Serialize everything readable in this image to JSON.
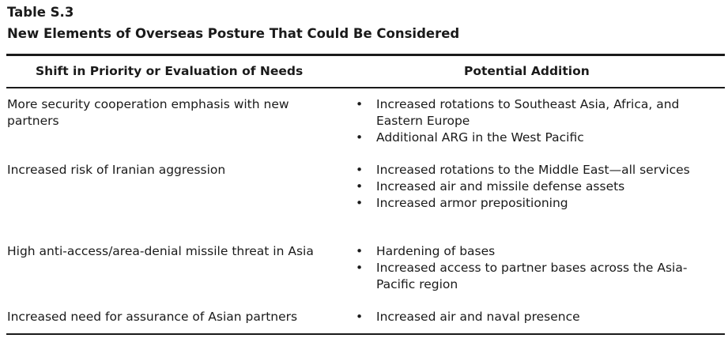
{
  "table": {
    "number": "Table S.3",
    "title": "New Elements of Overseas Posture That Could Be Considered",
    "headers": {
      "shift": "Shift in Priority or Evaluation of Needs",
      "addition": "Potential Addition"
    },
    "bullet_glyph": "•",
    "rows": [
      {
        "shift": "More security cooperation emphasis with new partners",
        "additions": [
          "Increased rotations to Southeast Asia, Africa, and Eastern Europe",
          "Additional ARG in the West Pacific"
        ]
      },
      {
        "shift": "Increased risk of Iranian aggression",
        "additions": [
          "Increased rotations to the Middle East—all services",
          "Increased air and missile defense assets",
          "Increased armor prepositioning"
        ]
      },
      {
        "shift": "High anti-access/area-denial missile threat in Asia",
        "additions": [
          "Hardening of bases",
          "Increased access to partner bases across the Asia-Pacific region"
        ]
      },
      {
        "shift": "Increased need for assurance of Asian partners",
        "additions": [
          "Increased air and naval presence"
        ]
      }
    ]
  }
}
